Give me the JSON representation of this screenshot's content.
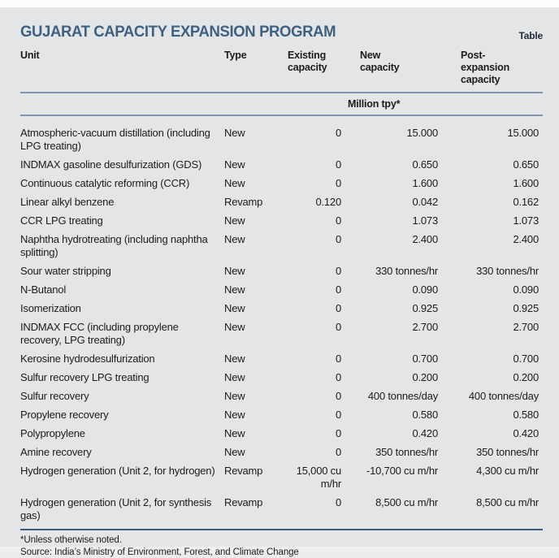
{
  "header": {
    "title": "GUJARAT CAPACITY EXPANSION PROGRAM",
    "corner_label": "Table"
  },
  "colors": {
    "title_blue": "#3e6183",
    "rule_steel_blue": "#8096ae",
    "footer_rule_navy": "#3c5c80",
    "card_background": "#e3e5e7",
    "text": "#1c1c1c"
  },
  "chart_data": {
    "type": "table",
    "title": "GUJARAT CAPACITY EXPANSION PROGRAM",
    "columns": [
      "Unit",
      "Type",
      "Existing capacity",
      "New capacity",
      "Post-expansion capacity"
    ],
    "units_band": "Million tpy*",
    "rows": [
      {
        "unit": "Atmospheric-vacuum distillation (including LPG treating)",
        "type": "New",
        "existing": "0",
        "new": "15.000",
        "post": "15.000"
      },
      {
        "unit": "INDMAX gasoline desulfurization (GDS)",
        "type": "New",
        "existing": "0",
        "new": "0.650",
        "post": "0.650"
      },
      {
        "unit": "Continuous catalytic reforming (CCR)",
        "type": "New",
        "existing": "0",
        "new": "1.600",
        "post": "1.600"
      },
      {
        "unit": "Linear alkyl benzene",
        "type": "Revamp",
        "existing": "0.120",
        "new": "0.042",
        "post": "0.162"
      },
      {
        "unit": "CCR LPG treating",
        "type": "New",
        "existing": "0",
        "new": "1.073",
        "post": "1.073"
      },
      {
        "unit": "Naphtha hydrotreating (including naphtha splitting)",
        "type": "New",
        "existing": "0",
        "new": "2.400",
        "post": "2.400"
      },
      {
        "unit": "Sour water stripping",
        "type": "New",
        "existing": "0",
        "new": "330 tonnes/hr",
        "post": "330 tonnes/hr"
      },
      {
        "unit": "N-Butanol",
        "type": "New",
        "existing": "0",
        "new": "0.090",
        "post": "0.090"
      },
      {
        "unit": "Isomerization",
        "type": "New",
        "existing": "0",
        "new": "0.925",
        "post": "0.925"
      },
      {
        "unit": "INDMAX FCC (including propylene recovery, LPG treating)",
        "type": "New",
        "existing": "0",
        "new": "2.700",
        "post": "2.700"
      },
      {
        "unit": "Kerosine hydrodesulfurization",
        "type": "New",
        "existing": "0",
        "new": "0.700",
        "post": "0.700"
      },
      {
        "unit": "Sulfur recovery LPG treating",
        "type": "New",
        "existing": "0",
        "new": "0.200",
        "post": "0.200"
      },
      {
        "unit": "Sulfur recovery",
        "type": "New",
        "existing": "0",
        "new": "400 tonnes/day",
        "post": "400 tonnes/day"
      },
      {
        "unit": "Propylene recovery",
        "type": "New",
        "existing": "0",
        "new": "0.580",
        "post": "0.580"
      },
      {
        "unit": "Polypropylene",
        "type": "New",
        "existing": "0",
        "new": "0.420",
        "post": "0.420"
      },
      {
        "unit": "Amine recovery",
        "type": "New",
        "existing": "0",
        "new": "350 tonnes/hr",
        "post": "350 tonnes/hr"
      },
      {
        "unit": "Hydrogen generation (Unit 2, for hydrogen)",
        "type": "Revamp",
        "existing": "15,000 cu m/hr",
        "new": "-10,700 cu m/hr",
        "post": "4,300 cu m/hr"
      },
      {
        "unit": "Hydrogen generation (Unit 2, for synthesis gas)",
        "type": "Revamp",
        "existing": "0",
        "new": "8,500 cu m/hr",
        "post": "8,500 cu m/hr"
      }
    ]
  },
  "footer": {
    "note": "*Unless otherwise noted.",
    "source": "Source: India’s Ministry of Environment, Forest, and Climate Change"
  }
}
